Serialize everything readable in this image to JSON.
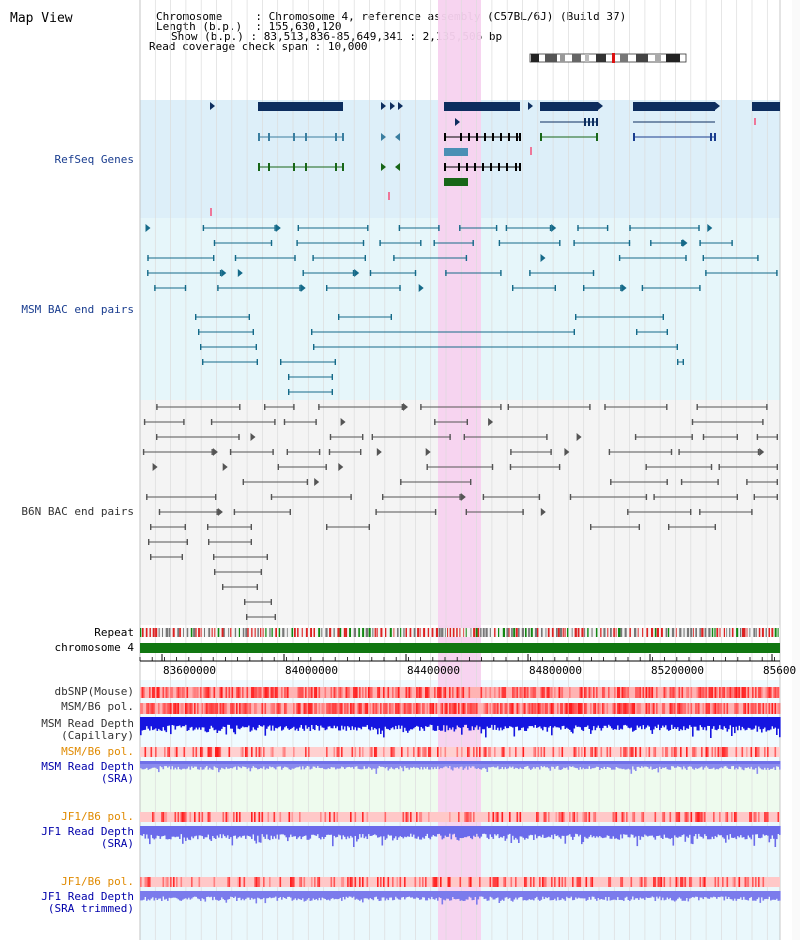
{
  "title": "Map View",
  "header": {
    "chromosome_label": "Chromosome",
    "chromosome_value": ": Chromosome 4, reference assembly (C57BL/6J) (Build 37)",
    "length_label": "Length (b.p.)",
    "length_value": ": 155,630,120",
    "show_label": "Show (b.p.)",
    "show_value": ": 83,513,836-85,649,341 : 2,135,506 bp",
    "coverage_label": "Read coverage check span",
    "coverage_value": ": 10,000"
  },
  "tracks": {
    "refseq": "RefSeq Genes",
    "msm_bac": "MSM BAC end pairs",
    "b6n_bac": "B6N BAC end pairs",
    "repeat": "Repeat",
    "chromosome": "chromosome 4",
    "dbsnp": "dbSNP(Mouse)",
    "msm_b6_pol_1": "MSM/B6 pol.",
    "msm_read_depth_cap_1": "MSM Read Depth",
    "msm_read_depth_cap_2": "(Capillary)",
    "msm_b6_pol_2": "MSM/B6 pol.",
    "msm_read_depth_sra_1": "MSM Read Depth",
    "msm_read_depth_sra_2": "(SRA)",
    "jf1_b6_pol_1": "JF1/B6 pol.",
    "jf1_read_depth_sra_1": "JF1 Read Depth",
    "jf1_read_depth_sra_2": "(SRA)",
    "jf1_b6_pol_2": "JF1/B6 pol.",
    "jf1_read_depth_trim_1": "JF1 Read Depth",
    "jf1_read_depth_trim_2": "(SRA trimmed)"
  },
  "axis": {
    "ticks": [
      "83600000",
      "84000000",
      "84400000",
      "84800000",
      "85200000",
      "85600"
    ]
  },
  "colors": {
    "refseq_bg": "#ddeff9",
    "msm_bg": "#e6f6fa",
    "highlight": "#f7d2ef",
    "gene_dark": "#0d2d5e",
    "gene_green": "#176617",
    "msm_pair": "#156a89",
    "b6n_pair": "#555555",
    "chromosome_bar": "#117711",
    "snp_red": "#ff6666",
    "depth_blue": "#1a1ae6",
    "depth_light": "#8a8aee"
  }
}
